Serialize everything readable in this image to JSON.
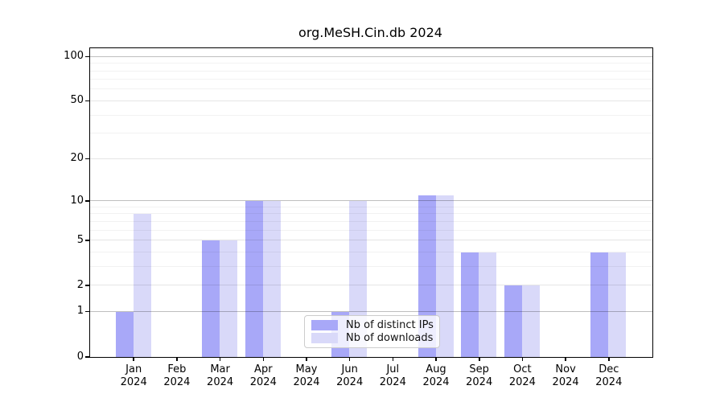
{
  "title": "org.MeSH.Cin.db 2024",
  "chart_data": {
    "type": "bar",
    "title": "org.MeSH.Cin.db 2024",
    "categories": [
      "Jan",
      "Feb",
      "Mar",
      "Apr",
      "May",
      "Jun",
      "Jul",
      "Aug",
      "Sep",
      "Oct",
      "Nov",
      "Dec"
    ],
    "year_label": "2024",
    "series": [
      {
        "name": "Nb of distinct IPs",
        "color": "#a8a8f8",
        "values": [
          1,
          0,
          5,
          10,
          0,
          1,
          0,
          11,
          4,
          2,
          0,
          4
        ]
      },
      {
        "name": "Nb of downloads",
        "color": "#d9d9f9",
        "values": [
          8,
          0,
          5,
          10,
          0,
          10,
          0,
          11,
          4,
          2,
          0,
          4
        ]
      }
    ],
    "yscale": "log1p",
    "ylim": [
      0,
      115
    ],
    "yticks": [
      0,
      1,
      2,
      5,
      10,
      20,
      50,
      100
    ],
    "minor_yticks": [
      3,
      4,
      6,
      7,
      8,
      9,
      30,
      40,
      60,
      70,
      80,
      90
    ],
    "grid": true,
    "legend_position": "lower center",
    "gridline_colors": {
      "major": "rgba(0,0,0,0.25)",
      "tick": "rgba(0,0,0,0.10)",
      "minor": "rgba(0,0,0,0.05)"
    }
  }
}
